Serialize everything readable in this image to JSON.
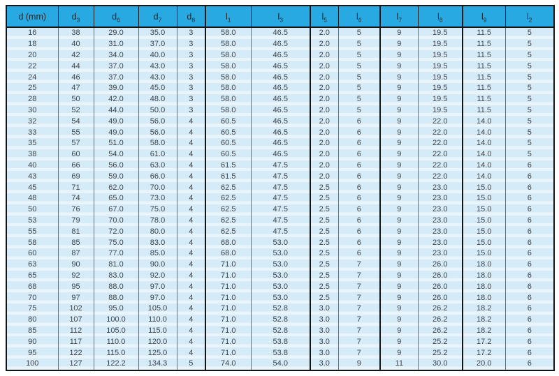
{
  "table": {
    "colors": {
      "header_bg": "#29a9e1",
      "row_blue": "#d5ebf7",
      "row_pale": "#eaf4fb",
      "border_dark": "#141414",
      "grid_line": "#64727d",
      "text": "#3f4347"
    },
    "columns": [
      {
        "base": "d (mm)",
        "sub": ""
      },
      {
        "base": "d",
        "sub": "3"
      },
      {
        "base": "d",
        "sub": "6"
      },
      {
        "base": "d",
        "sub": "7"
      },
      {
        "base": "d",
        "sub": "8"
      },
      {
        "base": "l",
        "sub": "1"
      },
      {
        "base": "l",
        "sub": "3"
      },
      {
        "base": "l",
        "sub": "5"
      },
      {
        "base": "l",
        "sub": "6"
      },
      {
        "base": "l",
        "sub": "7"
      },
      {
        "base": "l",
        "sub": "8"
      },
      {
        "base": "l",
        "sub": "9"
      },
      {
        "base": "l",
        "sub": "2"
      }
    ],
    "rows": [
      [
        "16",
        "38",
        "29.0",
        "35.0",
        "3",
        "58.0",
        "46.5",
        "2.0",
        "5",
        "9",
        "19.5",
        "11.5",
        "5"
      ],
      [
        "18",
        "40",
        "31.0",
        "37.0",
        "3",
        "58.0",
        "46.5",
        "2.0",
        "5",
        "9",
        "19.5",
        "11.5",
        "5"
      ],
      [
        "20",
        "42",
        "34.0",
        "40.0",
        "3",
        "58.0",
        "46.5",
        "2.0",
        "5",
        "9",
        "19.5",
        "11.5",
        "5"
      ],
      [
        "22",
        "44",
        "37.0",
        "43.0",
        "3",
        "58.0",
        "46.5",
        "2.0",
        "5",
        "9",
        "19.5",
        "11.5",
        "5"
      ],
      [
        "24",
        "46",
        "37.0",
        "43.0",
        "3",
        "58.0",
        "46.5",
        "2.0",
        "5",
        "9",
        "19.5",
        "11.5",
        "5"
      ],
      [
        "25",
        "47",
        "39.0",
        "45.0",
        "3",
        "58.0",
        "46.5",
        "2.0",
        "5",
        "9",
        "19.5",
        "11.5",
        "5"
      ],
      [
        "28",
        "50",
        "42.0",
        "48.0",
        "3",
        "58.0",
        "46.5",
        "2.0",
        "5",
        "9",
        "19.5",
        "11.5",
        "5"
      ],
      [
        "30",
        "52",
        "44.0",
        "50.0",
        "3",
        "58.0",
        "46.5",
        "2.0",
        "5",
        "9",
        "19.5",
        "11.5",
        "5"
      ],
      [
        "32",
        "54",
        "49.0",
        "56.0",
        "4",
        "60.5",
        "46.5",
        "2.0",
        "6",
        "9",
        "22.0",
        "14.0",
        "5"
      ],
      [
        "33",
        "55",
        "49.0",
        "56.0",
        "4",
        "60.5",
        "46.5",
        "2.0",
        "6",
        "9",
        "22.0",
        "14.0",
        "5"
      ],
      [
        "35",
        "57",
        "51.0",
        "58.0",
        "4",
        "60.5",
        "46.5",
        "2.0",
        "6",
        "9",
        "22.0",
        "14.0",
        "5"
      ],
      [
        "38",
        "60",
        "54.0",
        "61.0",
        "4",
        "60.5",
        "46.5",
        "2.0",
        "6",
        "9",
        "22.0",
        "14.0",
        "5"
      ],
      [
        "40",
        "66",
        "56.0",
        "63.0",
        "4",
        "61.5",
        "47.5",
        "2.0",
        "6",
        "9",
        "22.0",
        "14.0",
        "6"
      ],
      [
        "43",
        "69",
        "59.0",
        "66.0",
        "4",
        "61.5",
        "47.5",
        "2.0",
        "6",
        "9",
        "22.0",
        "14.0",
        "6"
      ],
      [
        "45",
        "71",
        "62.0",
        "70.0",
        "4",
        "62.5",
        "47.5",
        "2.5",
        "6",
        "9",
        "23.0",
        "15.0",
        "6"
      ],
      [
        "48",
        "74",
        "65.0",
        "73.0",
        "4",
        "62.5",
        "47.5",
        "2.5",
        "6",
        "9",
        "23.0",
        "15.0",
        "6"
      ],
      [
        "50",
        "76",
        "67.0",
        "75.0",
        "4",
        "62.5",
        "47.5",
        "2.5",
        "6",
        "9",
        "23.0",
        "15.0",
        "6"
      ],
      [
        "53",
        "79",
        "70.0",
        "78.0",
        "4",
        "62.5",
        "47.5",
        "2.5",
        "6",
        "9",
        "23.0",
        "15.0",
        "6"
      ],
      [
        "55",
        "81",
        "72.0",
        "80.0",
        "4",
        "62.5",
        "47.5",
        "2.5",
        "6",
        "9",
        "23.0",
        "15.0",
        "6"
      ],
      [
        "58",
        "85",
        "75.0",
        "83.0",
        "4",
        "68.0",
        "53.0",
        "2.5",
        "6",
        "9",
        "23.0",
        "15.0",
        "6"
      ],
      [
        "60",
        "87",
        "77.0",
        "85.0",
        "4",
        "68.0",
        "53.0",
        "2.5",
        "6",
        "9",
        "23.0",
        "15.0",
        "6"
      ],
      [
        "63",
        "90",
        "81.0",
        "90.0",
        "4",
        "71.0",
        "53.0",
        "2.5",
        "7",
        "9",
        "26.0",
        "18.0",
        "6"
      ],
      [
        "65",
        "92",
        "83.0",
        "92.0",
        "4",
        "71.0",
        "53.0",
        "2.5",
        "7",
        "9",
        "26.0",
        "18.0",
        "6"
      ],
      [
        "68",
        "95",
        "88.0",
        "97.0",
        "4",
        "71.0",
        "53.0",
        "2.5",
        "7",
        "9",
        "26.0",
        "18.0",
        "6"
      ],
      [
        "70",
        "97",
        "88.0",
        "97.0",
        "4",
        "71.0",
        "53.0",
        "2.5",
        "7",
        "9",
        "26.0",
        "18.0",
        "6"
      ],
      [
        "75",
        "102",
        "95.0",
        "105.0",
        "4",
        "71.0",
        "52.8",
        "3.0",
        "7",
        "9",
        "26.2",
        "18.2",
        "6"
      ],
      [
        "80",
        "107",
        "100.0",
        "110.0",
        "4",
        "71.0",
        "52.8",
        "3.0",
        "7",
        "9",
        "26.2",
        "18.2",
        "6"
      ],
      [
        "85",
        "112",
        "105.0",
        "115.0",
        "4",
        "71.0",
        "52.8",
        "3.0",
        "7",
        "9",
        "26.2",
        "18.2",
        "6"
      ],
      [
        "90",
        "117",
        "110.0",
        "120.0",
        "4",
        "71.0",
        "53.8",
        "3.0",
        "7",
        "9",
        "25.2",
        "17.2",
        "6"
      ],
      [
        "95",
        "122",
        "115.0",
        "125.0",
        "4",
        "71.0",
        "53.8",
        "3.0",
        "7",
        "9",
        "25.2",
        "17.2",
        "6"
      ],
      [
        "100",
        "127",
        "122.2",
        "134.3",
        "5",
        "74.0",
        "54.0",
        "3.0",
        "9",
        "11",
        "30.0",
        "20.0",
        "6"
      ]
    ]
  }
}
